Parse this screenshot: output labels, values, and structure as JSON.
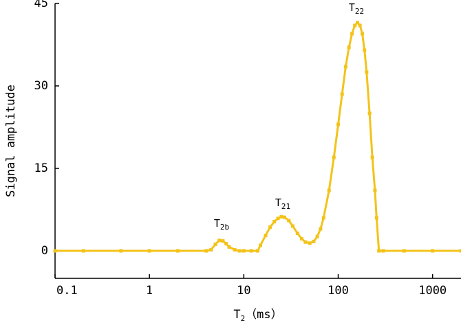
{
  "chart_data": {
    "type": "line",
    "log_x": true,
    "x_label": {
      "text": "T",
      "sub": "2",
      "suffix": "（ms）"
    },
    "y_label": "Signal amplitude",
    "xlim": [
      0.1,
      2000
    ],
    "xticks": [
      0.1,
      1,
      10,
      100,
      1000
    ],
    "ylim": [
      -5,
      45
    ],
    "yticks": [
      0,
      15,
      30,
      45
    ],
    "annotations": [
      {
        "text": "T",
        "sub": "2b"
      },
      {
        "text": "T",
        "sub": "21"
      },
      {
        "text": "T",
        "sub": "22"
      }
    ],
    "x": [
      0.1,
      0.2,
      0.5,
      1,
      2,
      4,
      4.5,
      5,
      5.5,
      6,
      6.5,
      7,
      8,
      9,
      10,
      12,
      14,
      15,
      17,
      19,
      21,
      23,
      25,
      27,
      30,
      33,
      37,
      41,
      45,
      50,
      55,
      60,
      65,
      70,
      80,
      90,
      100,
      110,
      120,
      130,
      140,
      150,
      160,
      170,
      180,
      190,
      200,
      215,
      230,
      245,
      255,
      270,
      300,
      500,
      1000,
      2000
    ],
    "series": [
      {
        "color": "#f3c31a",
        "values": [
          0,
          0,
          0,
          0,
          0,
          0,
          0.2,
          1.2,
          1.9,
          1.8,
          1.3,
          0.7,
          0.2,
          0,
          0,
          0,
          0,
          1.0,
          2.8,
          4.3,
          5.3,
          5.9,
          6.2,
          6.1,
          5.5,
          4.5,
          3.2,
          2.2,
          1.6,
          1.4,
          1.7,
          2.6,
          4.0,
          6.0,
          11,
          17,
          23,
          28.5,
          33.5,
          37,
          39.5,
          41,
          41.5,
          41,
          39.5,
          36.5,
          32.5,
          25,
          17,
          11,
          6,
          0,
          0,
          0,
          0,
          0
        ]
      }
    ]
  }
}
